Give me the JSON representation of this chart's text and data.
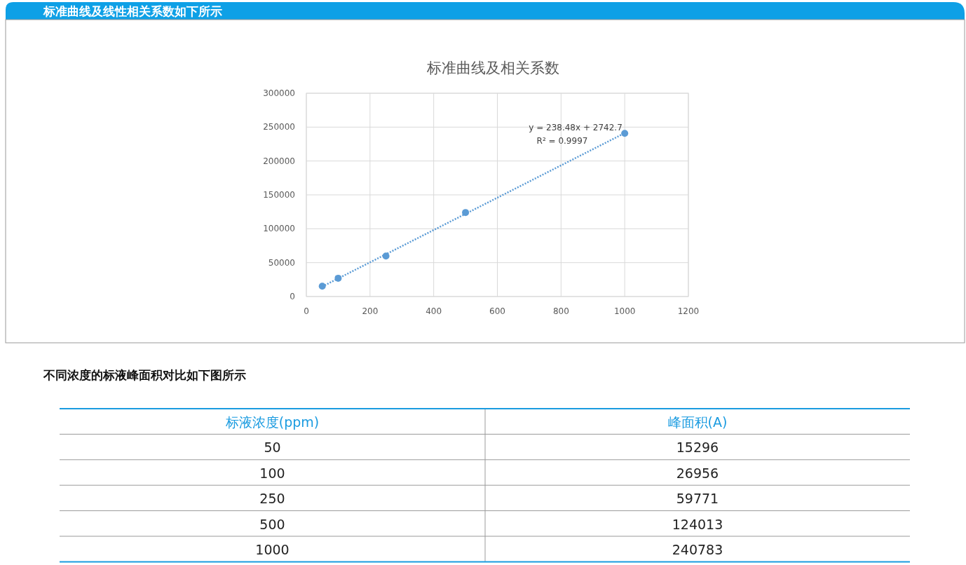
{
  "chart_data": [
    {
      "type": "scatter",
      "title": "标准曲线及相关系数",
      "annotations": [
        "标准曲线及线性相关系数如下所示",
        "y = 238.48x + 2742.7",
        "R² = 0.9997"
      ],
      "series": [
        {
          "type": "scatter",
          "color": "#5b9bd5",
          "marker": "circle",
          "x": [
            50,
            100,
            250,
            500,
            1000
          ],
          "values": [
            15300,
            27000,
            59800,
            124000,
            240800
          ]
        },
        {
          "type": "line",
          "color": "#5b9bd5",
          "marker": "none",
          "line_style": "dotted",
          "x": [
            50,
            1000
          ],
          "values": [
            14700,
            241200
          ]
        }
      ],
      "xlim": [
        0,
        1200
      ],
      "xticks": [
        0,
        200,
        400,
        600,
        800,
        1000,
        1200
      ],
      "ylim": [
        0,
        300000
      ],
      "yticks": [
        0,
        50000,
        100000,
        150000,
        200000,
        250000,
        300000
      ],
      "grid": true
    },
    {
      "type": "other",
      "title": "不同浓度的标液峰面积对比如下图所示",
      "annotations": [
        "标液浓度(ppm)",
        "峰面积(A)",
        "50",
        "15296",
        "100",
        "26956",
        "250",
        "59771",
        "500",
        "124013",
        "1000",
        "240783"
      ]
    }
  ]
}
